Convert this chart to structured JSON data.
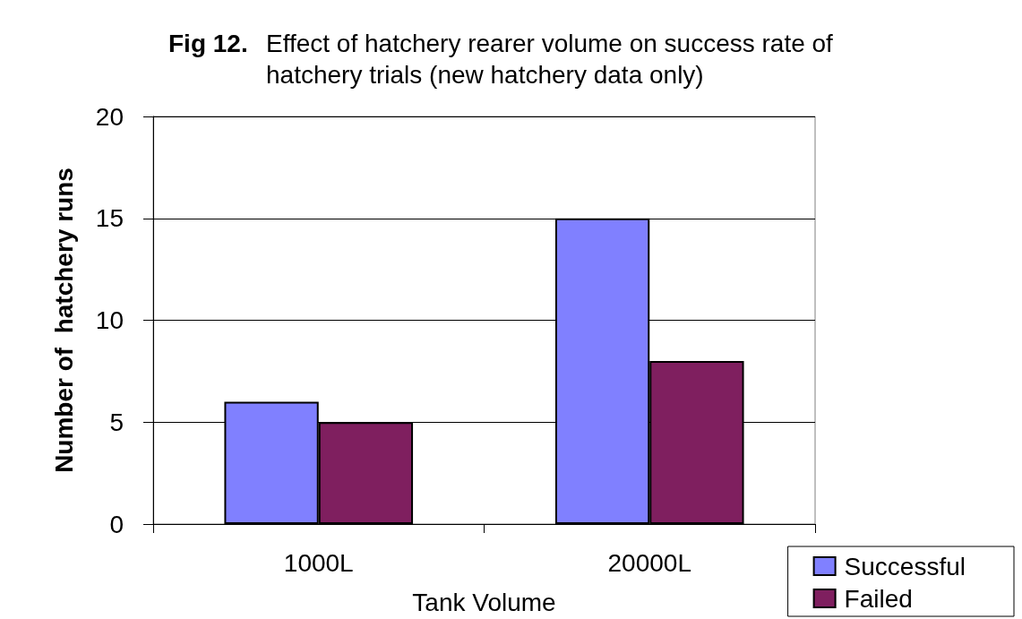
{
  "chart_data": {
    "type": "bar",
    "title": "Fig 12.",
    "subtitle": "Effect of hatchery rearer volume on success rate of hatchery trials (new hatchery data only)",
    "xlabel": "Tank Volume",
    "ylabel": "Number of  hatchery runs",
    "categories": [
      "1000L",
      "20000L"
    ],
    "series": [
      {
        "name": "Successful",
        "color": "#8080ff",
        "values": [
          6,
          15
        ]
      },
      {
        "name": "Failed",
        "color": "#7f1f5f",
        "values": [
          5,
          8
        ]
      }
    ],
    "ylim": [
      0,
      20
    ],
    "yticks": [
      0,
      5,
      10,
      15,
      20
    ],
    "grid": "y",
    "legend": "bottom right"
  }
}
